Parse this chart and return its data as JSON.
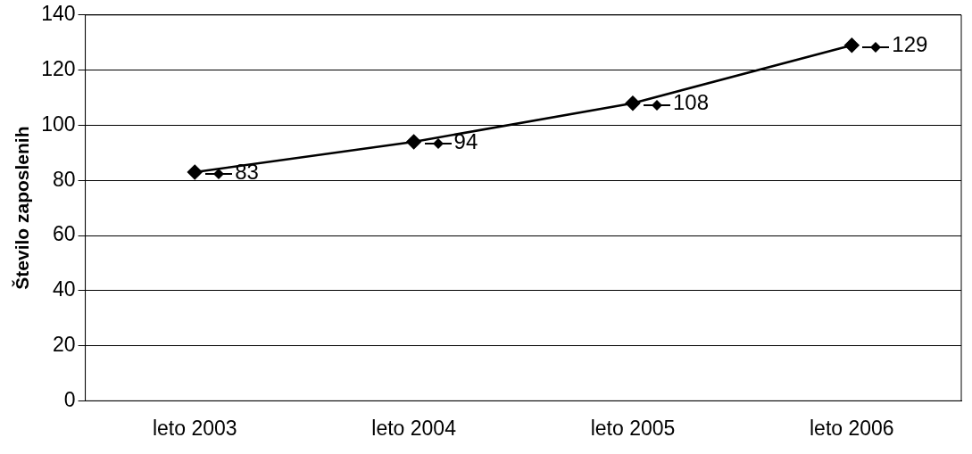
{
  "chart_data": {
    "type": "line",
    "ylabel": "Število zaposlenih",
    "categories": [
      "leto 2003",
      "leto 2004",
      "leto 2005",
      "leto 2006"
    ],
    "series": [
      {
        "color": "#000000",
        "values": [
          83,
          94,
          108,
          129
        ]
      }
    ],
    "ylim": [
      0,
      140
    ],
    "yticks": [
      0,
      20,
      40,
      60,
      80,
      100,
      120,
      140
    ],
    "grid": "y",
    "legend": false,
    "marker": "diamond",
    "line_style": "solid",
    "data_labels": true
  }
}
